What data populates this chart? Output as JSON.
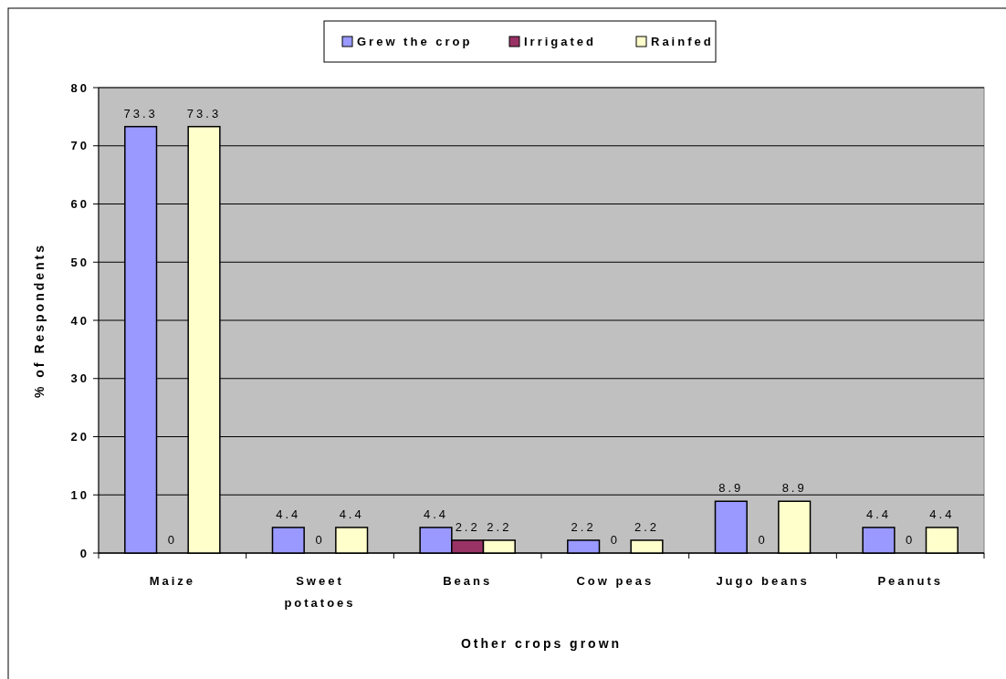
{
  "chart_data": {
    "type": "bar",
    "xlabel": "Other crops grown",
    "ylabel": "% of Respondents",
    "categories": [
      "Maize",
      "Sweet potatoes",
      "Beans",
      "Cow peas",
      "Jugo beans",
      "Peanuts"
    ],
    "series": [
      {
        "name": "Grew the crop",
        "color": "#9999ff",
        "values": [
          73.3,
          4.4,
          4.4,
          2.2,
          8.9,
          4.4
        ]
      },
      {
        "name": "Irrigated",
        "color": "#993366",
        "values": [
          0,
          0,
          2.2,
          0,
          0,
          0
        ]
      },
      {
        "name": "Rainfed",
        "color": "#ffffcc",
        "values": [
          73.3,
          4.4,
          2.2,
          2.2,
          8.9,
          4.4
        ]
      }
    ],
    "ylim": [
      0,
      80
    ],
    "yticks": [
      0,
      10,
      20,
      30,
      40,
      50,
      60,
      70,
      80
    ],
    "grid": "y",
    "legend": "top",
    "data_labels": true
  }
}
